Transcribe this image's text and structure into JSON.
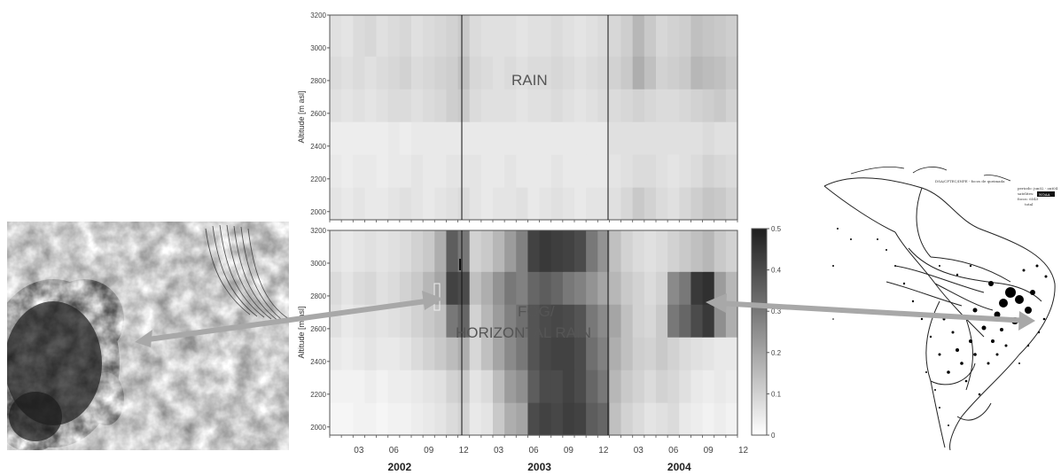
{
  "labels": {
    "rain": "RAIN",
    "fog_line1": "FOG/",
    "fog_line2": "HORIZONTAL RAIN",
    "map_header": "DSA/CPTEC/INPE - focos de queimada",
    "map_periodo": "periodo:  jun02 - out04",
    "map_satelites": "satelites:",
    "map_satelites_box": "NOAA",
    "map_focos": "focos:  6545",
    "map_total": "total"
  },
  "colors": {
    "arrow": "#a8a8a8",
    "axis": "#555555"
  },
  "chart_data": {
    "type": "heatmap",
    "x_years": [
      "2002",
      "2003",
      "2004"
    ],
    "x_month_ticks": [
      "03",
      "06",
      "09",
      "12",
      "03",
      "06",
      "09",
      "12",
      "03",
      "06",
      "09",
      "12"
    ],
    "x_range_months": [
      1,
      35
    ],
    "ylabel": "Altitude [m asl]",
    "altitude_bands": [
      2000,
      2200,
      2400,
      2600,
      2800,
      3000,
      3200
    ],
    "colorbar": {
      "min": 0,
      "max": 0.5,
      "ticks": [
        "0",
        "0.1",
        "0.2",
        "0.3",
        "0.4",
        "0.5"
      ]
    },
    "panels": [
      {
        "name": "RAIN",
        "ylim": [
          1950,
          3200
        ],
        "yticks": [
          "2000",
          "2200",
          "2400",
          "2600",
          "2800",
          "3000",
          "3200"
        ],
        "rows": [
          [
            0.06,
            0.05,
            0.06,
            0.05,
            0.05,
            0.06,
            0.07,
            0.06,
            0.05,
            0.06,
            0.07,
            0.08,
            0.06,
            0.05,
            0.06,
            0.06,
            0.07,
            0.05,
            0.06,
            0.07,
            0.06,
            0.05,
            0.06,
            0.06,
            0.07,
            0.09,
            0.12,
            0.1,
            0.08,
            0.07,
            0.09,
            0.11,
            0.13,
            0.12,
            0.1
          ],
          [
            0.05,
            0.04,
            0.05,
            0.05,
            0.04,
            0.05,
            0.05,
            0.06,
            0.05,
            0.05,
            0.06,
            0.06,
            0.06,
            0.05,
            0.05,
            0.06,
            0.05,
            0.05,
            0.05,
            0.06,
            0.05,
            0.05,
            0.05,
            0.05,
            0.06,
            0.07,
            0.08,
            0.08,
            0.07,
            0.06,
            0.07,
            0.08,
            0.1,
            0.09,
            0.08
          ],
          [
            0.04,
            0.04,
            0.04,
            0.04,
            0.04,
            0.05,
            0.04,
            0.05,
            0.05,
            0.05,
            0.05,
            0.05,
            0.05,
            0.05,
            0.05,
            0.05,
            0.05,
            0.05,
            0.05,
            0.05,
            0.05,
            0.05,
            0.05,
            0.05,
            0.07,
            0.07,
            0.07,
            0.07,
            0.07,
            0.07,
            0.07,
            0.07,
            0.08,
            0.07,
            0.07
          ],
          [
            0.07,
            0.06,
            0.07,
            0.06,
            0.07,
            0.08,
            0.08,
            0.07,
            0.08,
            0.09,
            0.11,
            0.12,
            0.08,
            0.07,
            0.07,
            0.07,
            0.06,
            0.07,
            0.07,
            0.08,
            0.07,
            0.06,
            0.07,
            0.08,
            0.08,
            0.09,
            0.1,
            0.09,
            0.08,
            0.08,
            0.09,
            0.1,
            0.11,
            0.12,
            0.1
          ],
          [
            0.08,
            0.07,
            0.08,
            0.07,
            0.08,
            0.09,
            0.1,
            0.08,
            0.09,
            0.1,
            0.11,
            0.14,
            0.09,
            0.08,
            0.07,
            0.08,
            0.07,
            0.08,
            0.08,
            0.09,
            0.08,
            0.07,
            0.08,
            0.09,
            0.1,
            0.12,
            0.18,
            0.14,
            0.1,
            0.11,
            0.12,
            0.16,
            0.15,
            0.14,
            0.12
          ],
          [
            0.07,
            0.06,
            0.08,
            0.09,
            0.07,
            0.08,
            0.09,
            0.07,
            0.08,
            0.09,
            0.1,
            0.12,
            0.08,
            0.07,
            0.07,
            0.07,
            0.06,
            0.07,
            0.07,
            0.08,
            0.07,
            0.06,
            0.07,
            0.08,
            0.09,
            0.11,
            0.16,
            0.12,
            0.09,
            0.1,
            0.11,
            0.14,
            0.13,
            0.12,
            0.11
          ]
        ]
      },
      {
        "name": "FOG/HORIZONTAL RAIN",
        "ylim": [
          1950,
          3200
        ],
        "yticks": [
          "2000",
          "2200",
          "2400",
          "2600",
          "2800",
          "3000",
          "3200"
        ],
        "rows": [
          [
            0.02,
            0.02,
            0.03,
            0.03,
            0.02,
            0.03,
            0.03,
            0.04,
            0.05,
            0.06,
            0.08,
            0.1,
            0.05,
            0.06,
            0.12,
            0.18,
            0.2,
            0.4,
            0.42,
            0.41,
            0.43,
            0.42,
            0.36,
            0.34,
            0.14,
            0.1,
            0.08,
            0.06,
            0.07,
            0.08,
            0.05,
            0.04,
            0.03,
            0.04,
            0.03
          ],
          [
            0.03,
            0.03,
            0.03,
            0.04,
            0.03,
            0.04,
            0.04,
            0.05,
            0.06,
            0.07,
            0.1,
            0.12,
            0.06,
            0.08,
            0.15,
            0.22,
            0.25,
            0.36,
            0.4,
            0.4,
            0.42,
            0.4,
            0.34,
            0.3,
            0.16,
            0.12,
            0.1,
            0.08,
            0.1,
            0.09,
            0.07,
            0.05,
            0.04,
            0.05,
            0.04
          ],
          [
            0.05,
            0.04,
            0.05,
            0.06,
            0.05,
            0.05,
            0.06,
            0.08,
            0.1,
            0.12,
            0.15,
            0.18,
            0.09,
            0.14,
            0.2,
            0.26,
            0.3,
            0.38,
            0.41,
            0.42,
            0.42,
            0.4,
            0.32,
            0.28,
            0.18,
            0.14,
            0.11,
            0.1,
            0.12,
            0.1,
            0.08,
            0.07,
            0.06,
            0.05,
            0.05
          ],
          [
            0.07,
            0.05,
            0.06,
            0.07,
            0.06,
            0.07,
            0.08,
            0.1,
            0.12,
            0.14,
            0.3,
            0.34,
            0.1,
            0.16,
            0.22,
            0.28,
            0.32,
            0.38,
            0.4,
            0.41,
            0.4,
            0.38,
            0.3,
            0.26,
            0.2,
            0.14,
            0.1,
            0.09,
            0.12,
            0.3,
            0.34,
            0.4,
            0.44,
            0.25,
            0.18
          ],
          [
            0.08,
            0.06,
            0.08,
            0.09,
            0.07,
            0.08,
            0.1,
            0.12,
            0.16,
            0.2,
            0.42,
            0.4,
            0.14,
            0.18,
            0.24,
            0.3,
            0.28,
            0.34,
            0.36,
            0.34,
            0.3,
            0.28,
            0.24,
            0.2,
            0.16,
            0.12,
            0.1,
            0.08,
            0.1,
            0.26,
            0.3,
            0.44,
            0.46,
            0.22,
            0.16
          ],
          [
            0.06,
            0.05,
            0.06,
            0.07,
            0.06,
            0.07,
            0.08,
            0.1,
            0.12,
            0.18,
            0.36,
            0.3,
            0.1,
            0.12,
            0.16,
            0.22,
            0.28,
            0.42,
            0.44,
            0.43,
            0.42,
            0.4,
            0.3,
            0.24,
            0.14,
            0.1,
            0.08,
            0.07,
            0.08,
            0.1,
            0.12,
            0.14,
            0.16,
            0.12,
            0.1
          ]
        ]
      }
    ]
  }
}
